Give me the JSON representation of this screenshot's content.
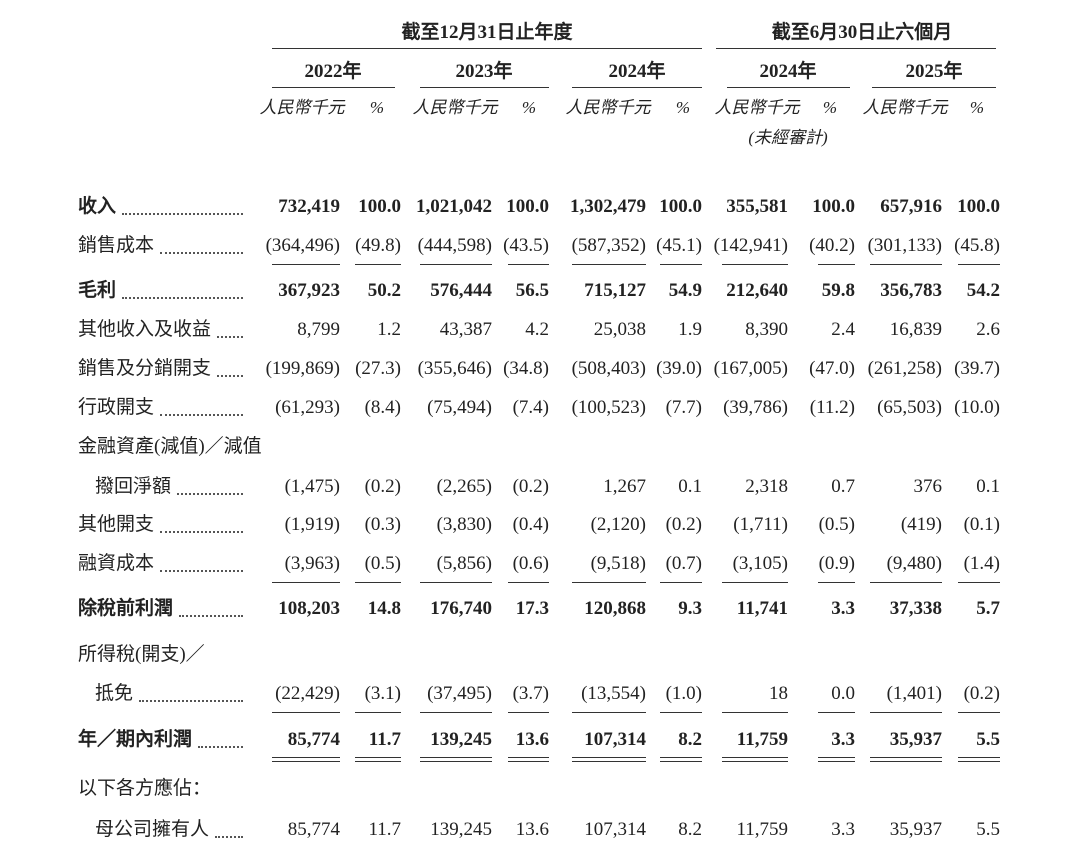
{
  "header": {
    "groups": [
      "截至12月31日止年度",
      "截至6月30日止六個月"
    ],
    "years": [
      "2022年",
      "2023年",
      "2024年",
      "2024年",
      "2025年"
    ],
    "units": [
      "人民幣千元",
      "%",
      "人民幣千元",
      "%",
      "人民幣千元",
      "%",
      "人民幣千元",
      "%",
      "人民幣千元",
      "%"
    ],
    "note": "(未經審計)"
  },
  "rows": [
    {
      "label": "收入",
      "values": [
        "732,419",
        "100.0",
        "1,021,042",
        "100.0",
        "1,302,479",
        "100.0",
        "355,581",
        "100.0",
        "657,916",
        "100.0"
      ]
    },
    {
      "label": "銷售成本",
      "values": [
        "(364,496)",
        "(49.8)",
        "(444,598)",
        "(43.5)",
        "(587,352)",
        "(45.1)",
        "(142,941)",
        "(40.2)",
        "(301,133)",
        "(45.8)"
      ]
    },
    {
      "label": "毛利",
      "values": [
        "367,923",
        "50.2",
        "576,444",
        "56.5",
        "715,127",
        "54.9",
        "212,640",
        "59.8",
        "356,783",
        "54.2"
      ]
    },
    {
      "label": "其他收入及收益",
      "values": [
        "8,799",
        "1.2",
        "43,387",
        "4.2",
        "25,038",
        "1.9",
        "8,390",
        "2.4",
        "16,839",
        "2.6"
      ]
    },
    {
      "label": "銷售及分銷開支",
      "values": [
        "(199,869)",
        "(27.3)",
        "(355,646)",
        "(34.8)",
        "(508,403)",
        "(39.0)",
        "(167,005)",
        "(47.0)",
        "(261,258)",
        "(39.7)"
      ]
    },
    {
      "label": "行政開支",
      "values": [
        "(61,293)",
        "(8.4)",
        "(75,494)",
        "(7.4)",
        "(100,523)",
        "(7.7)",
        "(39,786)",
        "(11.2)",
        "(65,503)",
        "(10.0)"
      ]
    },
    {
      "label": "金融資產(減值)／減值"
    },
    {
      "label": "撥回淨額",
      "values": [
        "(1,475)",
        "(0.2)",
        "(2,265)",
        "(0.2)",
        "1,267",
        "0.1",
        "2,318",
        "0.7",
        "376",
        "0.1"
      ]
    },
    {
      "label": "其他開支",
      "values": [
        "(1,919)",
        "(0.3)",
        "(3,830)",
        "(0.4)",
        "(2,120)",
        "(0.2)",
        "(1,711)",
        "(0.5)",
        "(419)",
        "(0.1)"
      ]
    },
    {
      "label": "融資成本",
      "values": [
        "(3,963)",
        "(0.5)",
        "(5,856)",
        "(0.6)",
        "(9,518)",
        "(0.7)",
        "(3,105)",
        "(0.9)",
        "(9,480)",
        "(1.4)"
      ]
    },
    {
      "label": "除稅前利潤",
      "values": [
        "108,203",
        "14.8",
        "176,740",
        "17.3",
        "120,868",
        "9.3",
        "11,741",
        "3.3",
        "37,338",
        "5.7"
      ]
    },
    {
      "label": "所得稅(開支)／"
    },
    {
      "label": "抵免",
      "values": [
        "(22,429)",
        "(3.1)",
        "(37,495)",
        "(3.7)",
        "(13,554)",
        "(1.0)",
        "18",
        "0.0",
        "(1,401)",
        "(0.2)"
      ]
    },
    {
      "label": "年／期內利潤",
      "values": [
        "85,774",
        "11.7",
        "139,245",
        "13.6",
        "107,314",
        "8.2",
        "11,759",
        "3.3",
        "35,937",
        "5.5"
      ]
    },
    {
      "label": "以下各方應佔："
    },
    {
      "label": "母公司擁有人",
      "values": [
        "85,774",
        "11.7",
        "139,245",
        "13.6",
        "107,314",
        "8.2",
        "11,759",
        "3.3",
        "35,937",
        "5.5"
      ]
    }
  ]
}
